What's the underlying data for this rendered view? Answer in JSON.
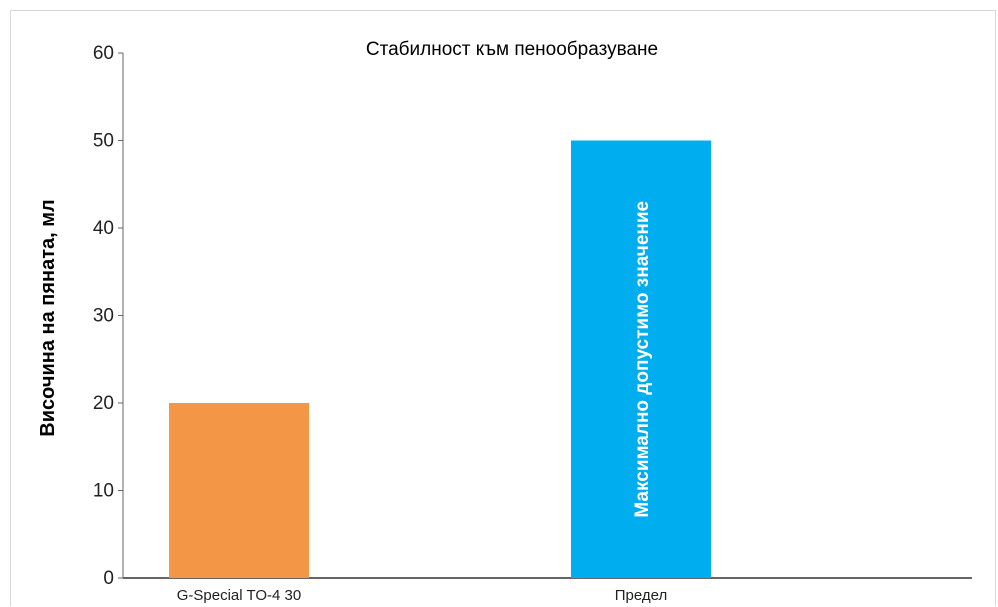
{
  "chart_data": {
    "type": "bar",
    "title": "Стабилност към пенообразуване",
    "xlabel": "",
    "ylabel": "Височина на пяната, мл",
    "ylim": [
      0,
      60
    ],
    "yticks": [
      0,
      10,
      20,
      30,
      40,
      50,
      60
    ],
    "categories": [
      "G-Special TO-4 30",
      "Предел"
    ],
    "values": [
      20,
      50
    ],
    "bar_colors": [
      "#f39645",
      "#00aeef"
    ],
    "bar_annotations": [
      "",
      "Максимално допустимо значение"
    ],
    "grid": false,
    "legend": "none"
  },
  "colors": {
    "axis": "#666666",
    "frame": "#d9d9d9"
  }
}
